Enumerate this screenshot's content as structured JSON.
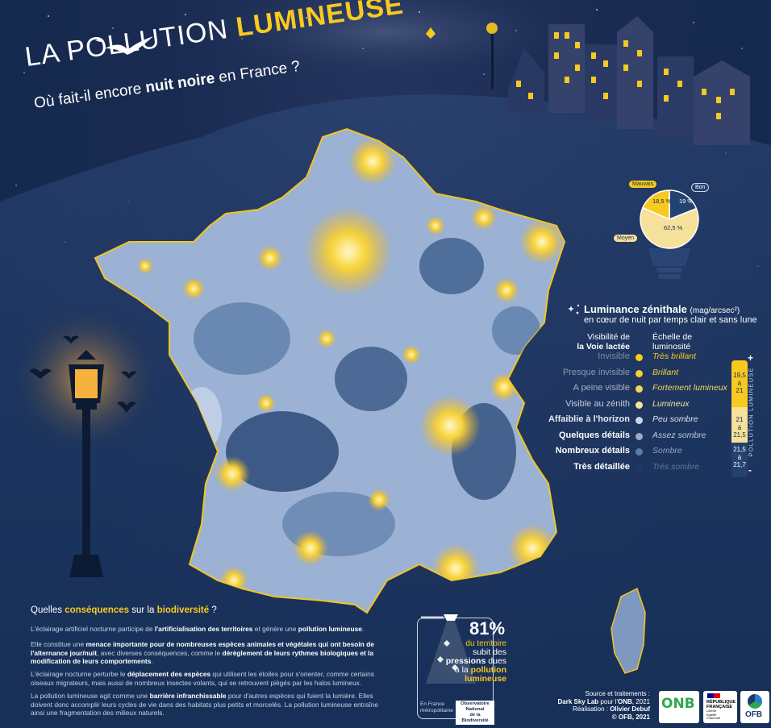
{
  "header": {
    "title_prefix": "LA POLLUTION",
    "title_emphasis": "LUMINEUSE",
    "subtitle_before": "Où fait-il encore ",
    "subtitle_bold": "nuit noire",
    "subtitle_after": " en France ?"
  },
  "pie": {
    "slices": [
      {
        "label": "Mauvais",
        "value_text": "18,5 %",
        "value": 18.5,
        "color": "#f8c91f"
      },
      {
        "label": "Bon",
        "value_text": "19 %",
        "value": 19,
        "color": "#24426f"
      },
      {
        "label": "Moyen",
        "value_text": "62,5 %",
        "value": 62.5,
        "color": "#f6e19a"
      }
    ]
  },
  "legend": {
    "title": "Luminance zénithale",
    "unit": "(mag/arcsec²)",
    "subtitle": "en cœur de nuit par temps clair et sans lune",
    "col_left_line1": "Visibilité de",
    "col_left_line2": "la Voie lactée",
    "col_right_line1": "Échelle de",
    "col_right_line2": "luminosité",
    "rows": [
      {
        "visibility": "Invisible",
        "level": "Très brillant",
        "color": "#f8c91f",
        "vis_color": "#7d8aa3",
        "lvl_color": "#f8c91f"
      },
      {
        "visibility": "Presque invisible",
        "level": "Brillant",
        "color": "#f4cf35",
        "vis_color": "#8c98b0",
        "lvl_color": "#f4cf35"
      },
      {
        "visibility": "A peine visible",
        "level": "Fortement lumineux",
        "color": "#f2d85a",
        "vis_color": "#a7b1c5",
        "lvl_color": "#f2d85a"
      },
      {
        "visibility": "Visible au zénith",
        "level": "Lumineux",
        "color": "#f4e59a",
        "vis_color": "#c4ccdb",
        "lvl_color": "#f4e59a"
      },
      {
        "visibility": "Affaiblie à l'horizon",
        "level": "Peu sombre",
        "color": "#c9d5e8",
        "vis_color": "#e6ebf3",
        "lvl_color": "#dde4f0"
      },
      {
        "visibility": "Quelques détails",
        "level": "Assez sombre",
        "color": "#98abc9",
        "vis_color": "#ffffff",
        "lvl_color": "#bfcbe0"
      },
      {
        "visibility": "Nombreux détails",
        "level": "Sombre",
        "color": "#5c7aa4",
        "vis_color": "#ffffff",
        "lvl_color": "#8ea2c3"
      },
      {
        "visibility": "Très détaillée",
        "level": "Très sombre",
        "color": "#1e3a64",
        "vis_color": "#ffffff",
        "lvl_color": "#5f779d"
      }
    ],
    "scale": {
      "plus": "+",
      "minus": "-",
      "band1_top": "19,5",
      "band1_mid": "à",
      "band1_bottom": "21",
      "band2_top": "21",
      "band2_mid": "à",
      "band2_bottom": "21,5",
      "band3_top": "21,5",
      "band3_mid": "à",
      "band3_bottom": "21,7",
      "vertical_label": "POLLUTION LUMINEUSE"
    }
  },
  "biodiversity": {
    "title_before": "Quelles ",
    "title_em1": "conséquences",
    "title_mid": " sur la ",
    "title_em2": "biodiversité",
    "title_after": " ?",
    "p1": {
      "a": "L'éclairage artificiel nocturne participe de ",
      "b": "l'artificialisation des territoires",
      "c": " et génère une ",
      "d": "pollution lumineuse",
      "e": "."
    },
    "p2": {
      "a": "Elle constitue une ",
      "b": "menace importante pour de nombreuses espèces animales et végétales qui ont besoin de l'alternance jour/nuit",
      "c": ", avec diverses conséquences, comme le ",
      "d": "dérèglement de leurs rythmes biologiques et la modification de leurs comportements",
      "e": "."
    },
    "p3": {
      "a": "L'éclairage nocturne perturbe le ",
      "b": "déplacement des espèces",
      "c": " qui utilisent les étoiles pour s'orienter, comme certains oiseaux migrateurs, mais aussi de nombreux insectes volants, qui se retrouvent piégés par les halos lumineux."
    },
    "p4": {
      "a": "La pollution lumineuse agit comme une ",
      "b": "barrière infranchissable",
      "c": " pour d'autres espèces qui fuient la lumière. Elles doivent donc accomplir leurs cycles de vie dans des habitats plus petits et morcelés. La pollution lumineuse entraîne ainsi une fragmentation des milieux naturels."
    }
  },
  "stat": {
    "percent": "81%",
    "line1": "du territoire",
    "line2": "subit des",
    "line3a": "pressions",
    "line3b": " dues",
    "line4a": "à la ",
    "line4b": "pollution",
    "line5": "lumineuse",
    "footer_left1": "En France",
    "footer_left2": "métropolitaine",
    "footer_right1": "Observatoire National",
    "footer_right2": "de la Biodiversité"
  },
  "credits": {
    "line1": "Source et traitements :",
    "line2a": "Dark Sky Lab",
    "line2b": " pour l'",
    "line2c": "ONB",
    "line2d": ", 2021",
    "line3a": "Réalisation : ",
    "line3b": "Olivier Debuf",
    "line4": "© OFB, 2021"
  },
  "logos": {
    "onb": "ONB",
    "rf1": "RÉPUBLIQUE",
    "rf2": "FRANÇAISE",
    "rf_motto1": "Liberté",
    "rf_motto2": "Égalité",
    "rf_motto3": "Fraternité",
    "ofb": "OFB"
  }
}
